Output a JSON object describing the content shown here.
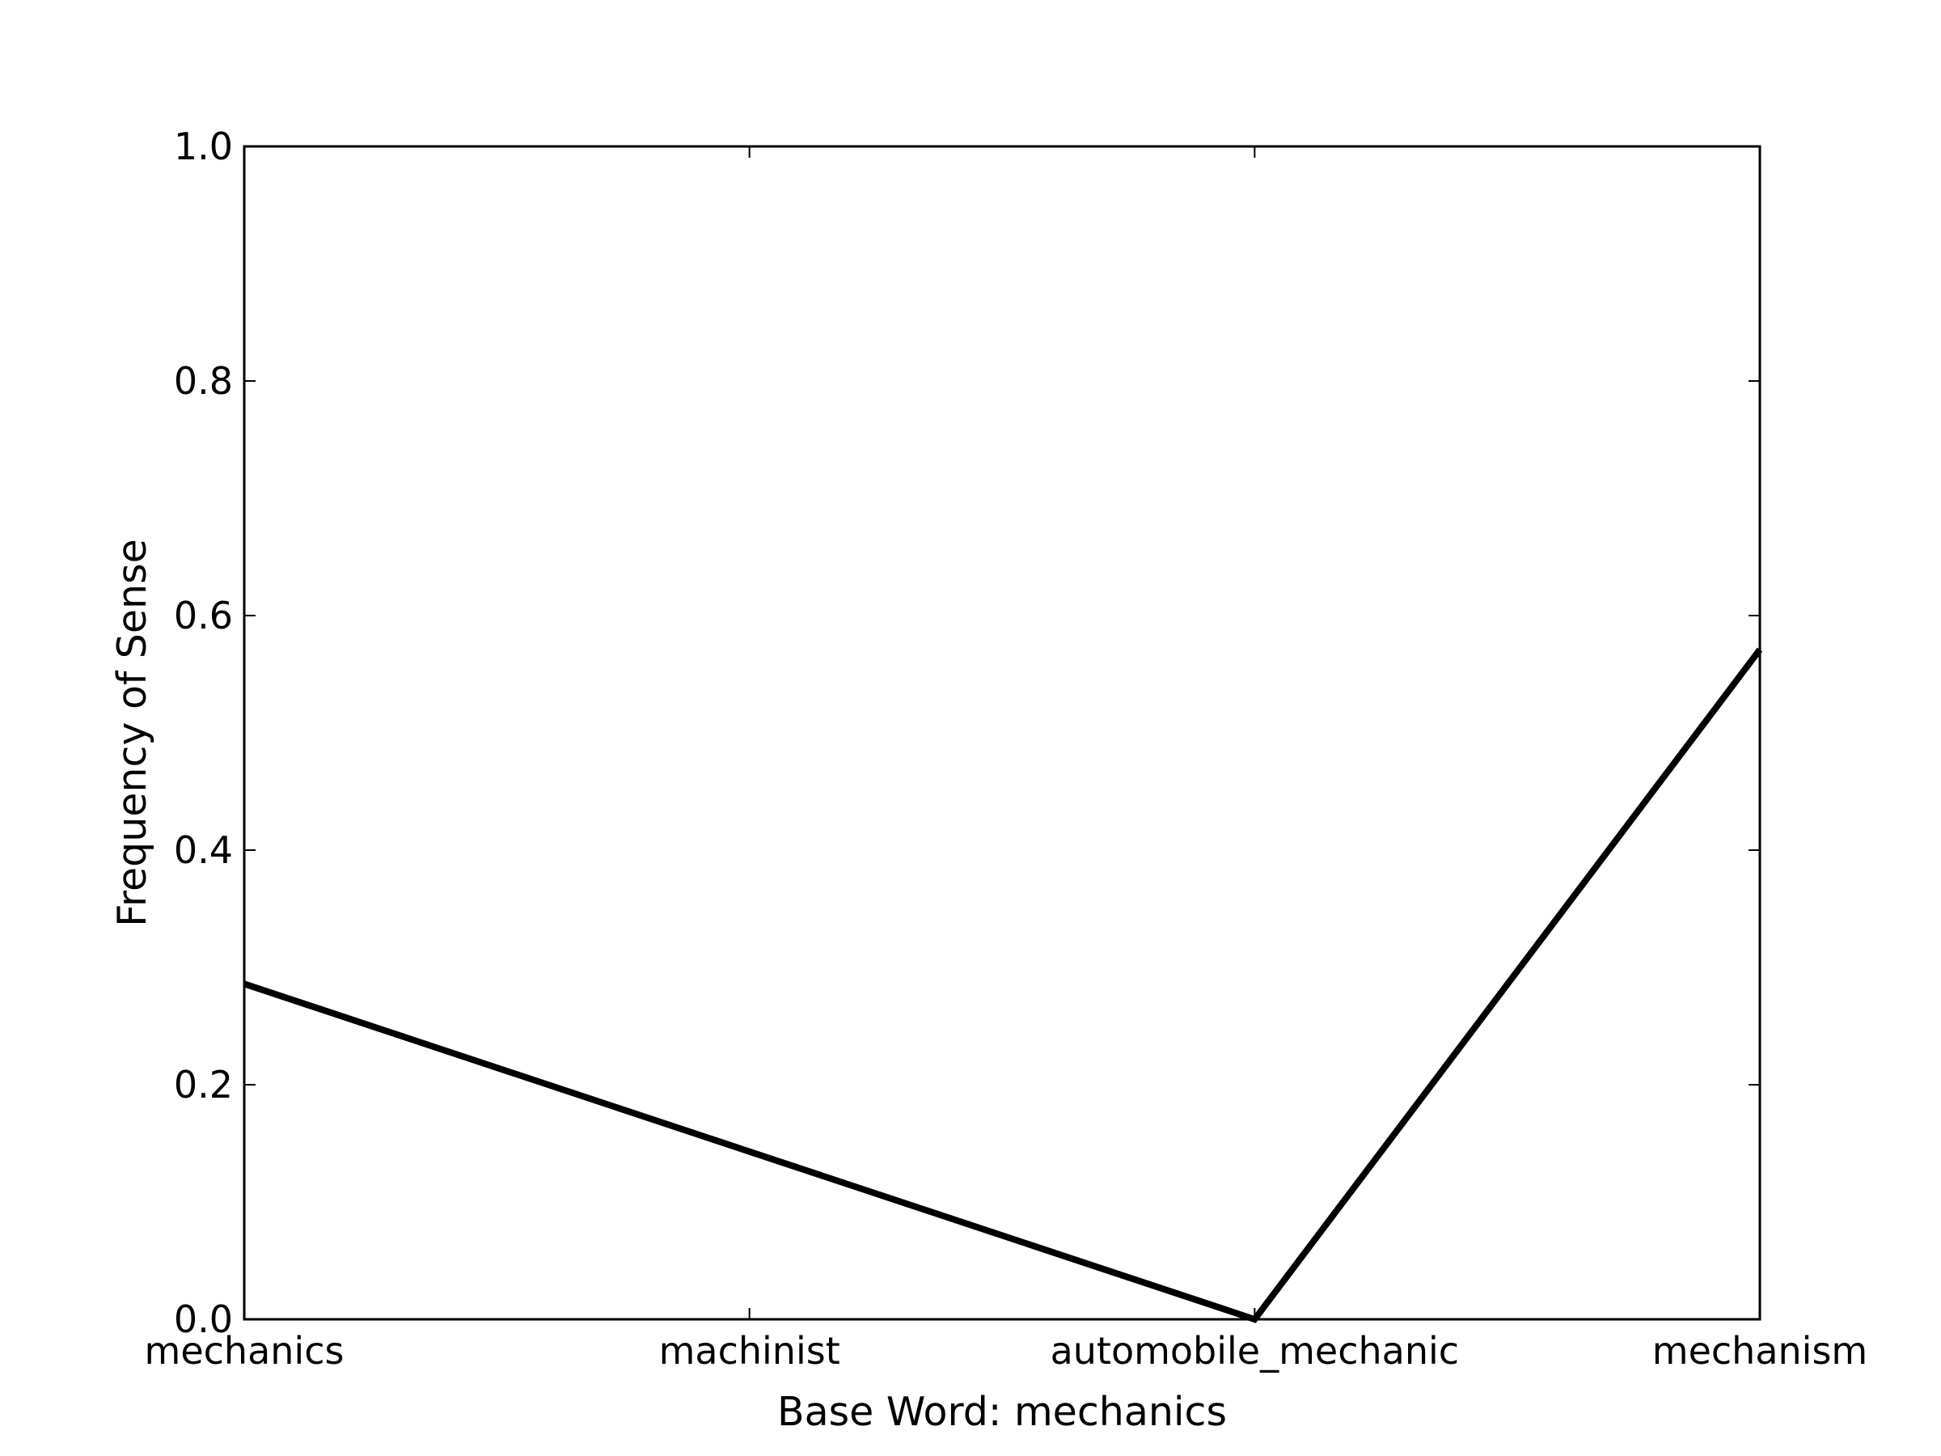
{
  "chart_data": {
    "type": "line",
    "title": "",
    "xlabel": "Base Word: mechanics",
    "ylabel": "Frequency of Sense",
    "categories": [
      "mechanics",
      "machinist",
      "automobile_mechanic",
      "mechanism"
    ],
    "series": [
      {
        "values": [
          0.286,
          0.143,
          0.0,
          0.571
        ]
      }
    ],
    "ylim": [
      0.0,
      1.0
    ],
    "yticks": [
      "0.0",
      "0.2",
      "0.4",
      "0.6",
      "0.8",
      "1.0"
    ],
    "grid": false,
    "legend": "none",
    "colors": {
      "line": "#000000",
      "axes": "#000000",
      "background": "#ffffff"
    }
  }
}
